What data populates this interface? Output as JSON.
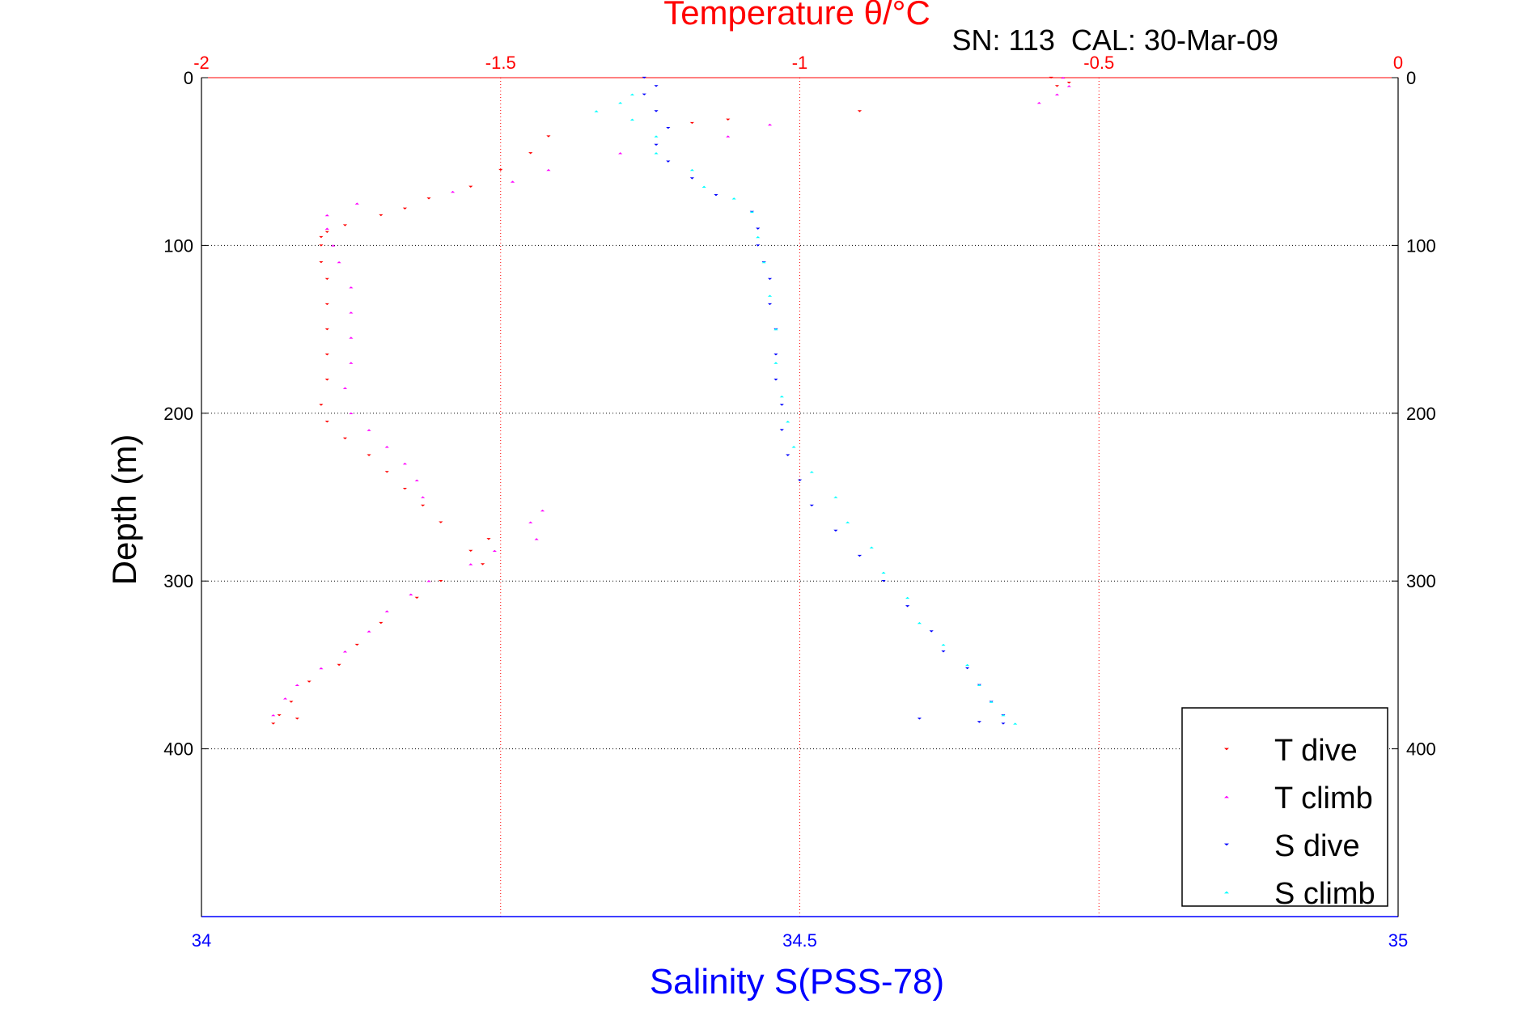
{
  "chart_data": {
    "type": "scatter",
    "title": "Temperature θ/°C",
    "subtitle": "SN: 113  CAL: 30-Mar-09",
    "xlabel": "Salinity S(PSS-78)",
    "ylabel": "Depth (m)",
    "x_bottom": {
      "range": [
        34,
        35
      ],
      "ticks": [
        "34",
        "34.5",
        "35"
      ],
      "tick_values": [
        34,
        34.5,
        35
      ]
    },
    "x_top": {
      "range": [
        -2,
        0
      ],
      "ticks": [
        "-2",
        "-1.5",
        "-1",
        "-0.5",
        "0"
      ],
      "tick_values": [
        -2,
        -1.5,
        -1,
        -0.5,
        0
      ]
    },
    "y": {
      "range": [
        0,
        500
      ],
      "reversed": true,
      "ticks": [
        "0",
        "100",
        "200",
        "300",
        "400"
      ],
      "tick_values": [
        0,
        100,
        200,
        300,
        400
      ]
    },
    "grid": true,
    "legend_position": "bottom-right",
    "series": [
      {
        "name": "T dive",
        "axis": "temperature",
        "marker": "down-triangle",
        "color": "#ff0000",
        "points": [
          [
            -0.58,
            0
          ],
          [
            -0.55,
            3
          ],
          [
            -0.57,
            5
          ],
          [
            -0.9,
            20
          ],
          [
            -1.12,
            25
          ],
          [
            -1.18,
            27
          ],
          [
            -1.42,
            35
          ],
          [
            -1.45,
            45
          ],
          [
            -1.5,
            55
          ],
          [
            -1.55,
            65
          ],
          [
            -1.62,
            72
          ],
          [
            -1.66,
            78
          ],
          [
            -1.7,
            82
          ],
          [
            -1.76,
            88
          ],
          [
            -1.79,
            92
          ],
          [
            -1.8,
            95
          ],
          [
            -1.8,
            100
          ],
          [
            -1.8,
            110
          ],
          [
            -1.79,
            120
          ],
          [
            -1.79,
            135
          ],
          [
            -1.79,
            150
          ],
          [
            -1.79,
            165
          ],
          [
            -1.79,
            180
          ],
          [
            -1.8,
            195
          ],
          [
            -1.79,
            205
          ],
          [
            -1.76,
            215
          ],
          [
            -1.72,
            225
          ],
          [
            -1.69,
            235
          ],
          [
            -1.66,
            245
          ],
          [
            -1.63,
            255
          ],
          [
            -1.6,
            265
          ],
          [
            -1.52,
            275
          ],
          [
            -1.55,
            282
          ],
          [
            -1.53,
            290
          ],
          [
            -1.6,
            300
          ],
          [
            -1.64,
            310
          ],
          [
            -1.7,
            325
          ],
          [
            -1.74,
            338
          ],
          [
            -1.77,
            350
          ],
          [
            -1.82,
            360
          ],
          [
            -1.85,
            372
          ],
          [
            -1.87,
            380
          ],
          [
            -1.84,
            382
          ],
          [
            -1.88,
            385
          ]
        ]
      },
      {
        "name": "T climb",
        "axis": "temperature",
        "marker": "up-triangle",
        "color": "#ff00ff",
        "points": [
          [
            -0.56,
            0
          ],
          [
            -0.55,
            5
          ],
          [
            -0.57,
            10
          ],
          [
            -0.6,
            15
          ],
          [
            -1.05,
            28
          ],
          [
            -1.12,
            35
          ],
          [
            -1.3,
            45
          ],
          [
            -1.42,
            55
          ],
          [
            -1.48,
            62
          ],
          [
            -1.58,
            68
          ],
          [
            -1.74,
            75
          ],
          [
            -1.79,
            82
          ],
          [
            -1.79,
            90
          ],
          [
            -1.78,
            100
          ],
          [
            -1.77,
            110
          ],
          [
            -1.75,
            125
          ],
          [
            -1.75,
            140
          ],
          [
            -1.75,
            155
          ],
          [
            -1.75,
            170
          ],
          [
            -1.76,
            185
          ],
          [
            -1.75,
            200
          ],
          [
            -1.72,
            210
          ],
          [
            -1.69,
            220
          ],
          [
            -1.66,
            230
          ],
          [
            -1.64,
            240
          ],
          [
            -1.63,
            250
          ],
          [
            -1.43,
            258
          ],
          [
            -1.45,
            265
          ],
          [
            -1.44,
            275
          ],
          [
            -1.51,
            282
          ],
          [
            -1.55,
            290
          ],
          [
            -1.62,
            300
          ],
          [
            -1.65,
            308
          ],
          [
            -1.69,
            318
          ],
          [
            -1.72,
            330
          ],
          [
            -1.76,
            342
          ],
          [
            -1.8,
            352
          ],
          [
            -1.84,
            362
          ],
          [
            -1.86,
            370
          ],
          [
            -1.88,
            380
          ]
        ]
      },
      {
        "name": "S dive",
        "axis": "salinity",
        "marker": "down-triangle",
        "color": "#0000ff",
        "points": [
          [
            34.37,
            0
          ],
          [
            34.38,
            5
          ],
          [
            34.37,
            10
          ],
          [
            34.38,
            20
          ],
          [
            34.39,
            30
          ],
          [
            34.38,
            40
          ],
          [
            34.39,
            50
          ],
          [
            34.41,
            60
          ],
          [
            34.43,
            70
          ],
          [
            34.46,
            80
          ],
          [
            34.465,
            90
          ],
          [
            34.465,
            100
          ],
          [
            34.47,
            110
          ],
          [
            34.475,
            120
          ],
          [
            34.475,
            135
          ],
          [
            34.48,
            150
          ],
          [
            34.48,
            165
          ],
          [
            34.48,
            180
          ],
          [
            34.485,
            195
          ],
          [
            34.485,
            210
          ],
          [
            34.49,
            225
          ],
          [
            34.5,
            240
          ],
          [
            34.51,
            255
          ],
          [
            34.53,
            270
          ],
          [
            34.55,
            285
          ],
          [
            34.57,
            300
          ],
          [
            34.59,
            315
          ],
          [
            34.61,
            330
          ],
          [
            34.62,
            342
          ],
          [
            34.64,
            352
          ],
          [
            34.65,
            362
          ],
          [
            34.66,
            372
          ],
          [
            34.67,
            380
          ],
          [
            34.6,
            382
          ],
          [
            34.65,
            384
          ],
          [
            34.67,
            385
          ]
        ]
      },
      {
        "name": "S climb",
        "axis": "salinity",
        "marker": "up-triangle",
        "color": "#00ffff",
        "points": [
          [
            34.36,
            10
          ],
          [
            34.35,
            15
          ],
          [
            34.33,
            20
          ],
          [
            34.36,
            25
          ],
          [
            34.38,
            35
          ],
          [
            34.38,
            45
          ],
          [
            34.41,
            55
          ],
          [
            34.42,
            65
          ],
          [
            34.445,
            72
          ],
          [
            34.46,
            80
          ],
          [
            34.465,
            95
          ],
          [
            34.47,
            110
          ],
          [
            34.475,
            130
          ],
          [
            34.48,
            150
          ],
          [
            34.48,
            170
          ],
          [
            34.485,
            190
          ],
          [
            34.49,
            205
          ],
          [
            34.495,
            220
          ],
          [
            34.51,
            235
          ],
          [
            34.53,
            250
          ],
          [
            34.54,
            265
          ],
          [
            34.56,
            280
          ],
          [
            34.57,
            295
          ],
          [
            34.59,
            310
          ],
          [
            34.6,
            325
          ],
          [
            34.62,
            338
          ],
          [
            34.64,
            350
          ],
          [
            34.65,
            362
          ],
          [
            34.66,
            372
          ],
          [
            34.67,
            380
          ],
          [
            34.68,
            385
          ]
        ]
      }
    ]
  }
}
